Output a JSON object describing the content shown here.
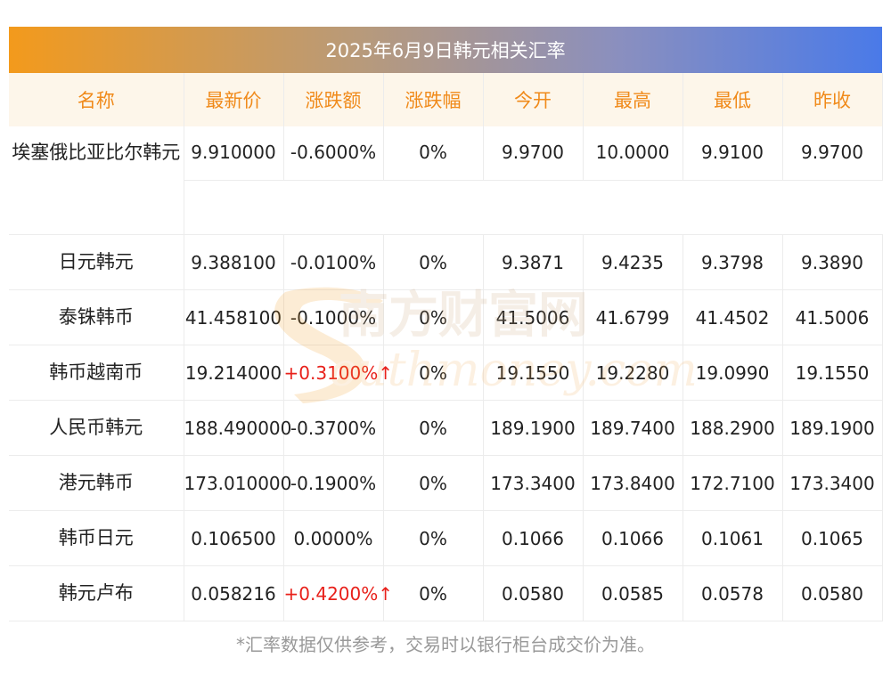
{
  "title": "2025年6月9日韩元相关汇率",
  "headers": [
    "名称",
    "最新价",
    "涨跌额",
    "涨跌幅",
    "今开",
    "最高",
    "最低",
    "昨收"
  ],
  "rows": [
    [
      "埃塞俄比亚比尔韩元",
      "9.910000",
      "-0.6000%",
      "0%",
      "9.9700",
      "10.0000",
      "9.9100",
      "9.9700"
    ],
    [
      "日元韩元",
      "9.388100",
      "-0.0100%",
      "0%",
      "9.3871",
      "9.4235",
      "9.3798",
      "9.3890"
    ],
    [
      "泰铢韩币",
      "41.458100",
      "-0.1000%",
      "0%",
      "41.5006",
      "41.6799",
      "41.4502",
      "41.5006"
    ],
    [
      "韩币越南币",
      "19.214000",
      "+0.3100%↑",
      "0%",
      "19.1550",
      "19.2280",
      "19.0990",
      "19.1550"
    ],
    [
      "人民币韩元",
      "188.490000",
      "-0.3700%",
      "0%",
      "189.1900",
      "189.7400",
      "188.2900",
      "189.1900"
    ],
    [
      "港元韩币",
      "173.010000",
      "-0.1900%",
      "0%",
      "173.3400",
      "173.8400",
      "172.7100",
      "173.3400"
    ],
    [
      "韩币日元",
      "0.106500",
      "0.0000%",
      "0%",
      "0.1066",
      "0.1066",
      "0.1061",
      "0.1065"
    ],
    [
      "韩元卢布",
      "0.058216",
      "+0.4200%↑",
      "0%",
      "0.0580",
      "0.0585",
      "0.0578",
      "0.0580"
    ]
  ],
  "watermark": {
    "cn": "南方财富网",
    "en": "outhmoney.com"
  },
  "footnote": "*汇率数据仅供参考，交易时以银行柜台成交价为准。",
  "colors": {
    "header_text": "#f08a1a",
    "header_bg": "#fdf6ea",
    "up": "#e8201a"
  }
}
